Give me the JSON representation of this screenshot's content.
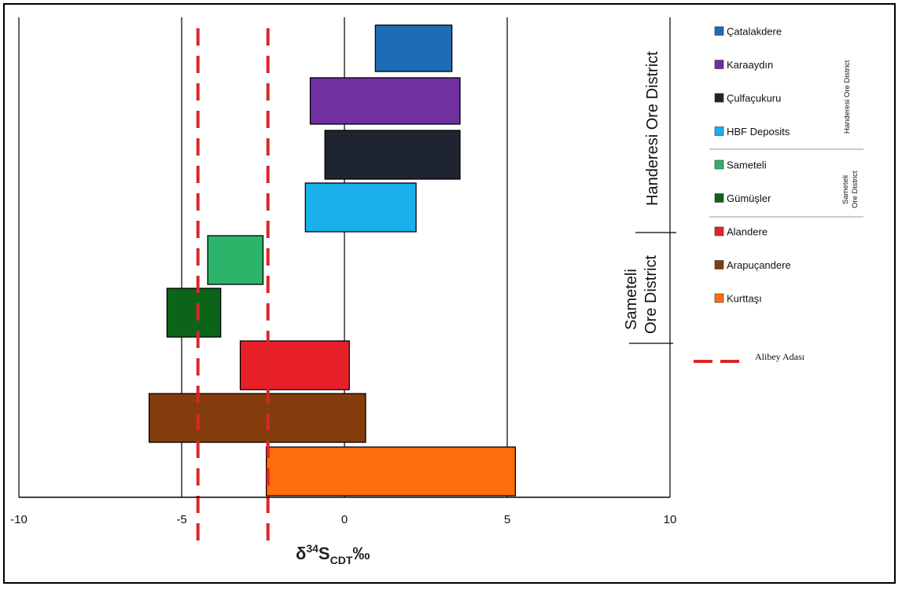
{
  "chart_data": {
    "type": "bar",
    "orientation": "horizontal",
    "title": "",
    "xlabel": "δ34S_CDT‰",
    "xlabel_parts": {
      "delta": "δ",
      "sup": "34",
      "s": "S",
      "sub": "CDT",
      "unit": "‰"
    },
    "xlim": [
      -10,
      10
    ],
    "xticks": [
      -10,
      -5,
      0,
      5,
      10
    ],
    "xtick_labels": [
      "-10",
      "-5",
      "0",
      "5",
      "10"
    ],
    "grid": "vertical",
    "bars": [
      {
        "name": "Çatalakdere",
        "min": 0.95,
        "max": 3.3,
        "color": "#1f6bb5"
      },
      {
        "name": "Karaaydın",
        "min": -1.05,
        "max": 3.55,
        "color": "#7030a0"
      },
      {
        "name": "Çulfaçukuru",
        "min": -0.6,
        "max": 3.55,
        "color": "#1e2530"
      },
      {
        "name": "HBF Deposits",
        "min": -1.2,
        "max": 2.2,
        "color": "#19b0ec"
      },
      {
        "name": "Sameteli",
        "min": -4.2,
        "max": -2.5,
        "color": "#2db46b"
      },
      {
        "name": "Gümüşler",
        "min": -5.45,
        "max": -3.8,
        "color": "#0c6418"
      },
      {
        "name": "Alandere",
        "min": -3.2,
        "max": 0.15,
        "color": "#e8202a"
      },
      {
        "name": "Arapuçandere",
        "min": -6.0,
        "max": 0.65,
        "color": "#843c0c"
      },
      {
        "name": "Kurttaşı",
        "min": -2.4,
        "max": 5.25,
        "color": "#ff6d0c"
      }
    ],
    "reference_lines": [
      {
        "name": "Alibey Adası",
        "values": [
          -4.5,
          -2.35
        ],
        "color": "#d9262a",
        "style": "dashed"
      }
    ],
    "legend_placement": "right"
  },
  "districts": {
    "handeresi_big": "Handeresi Ore District",
    "sameteli_big_line1": "Sameteli",
    "sameteli_big_line2": "Ore District",
    "handeresi_small": "Handeresi Ore District",
    "sameteli_small_line1": "Sameteli",
    "sameteli_small_line2": "Ore District"
  },
  "legend": {
    "items": [
      {
        "label": "Çatalakdere",
        "color": "#1f6bb5"
      },
      {
        "label": "Karaaydın",
        "color": "#7030a0"
      },
      {
        "label": "Çulfaçukuru",
        "color": "#1e2530"
      },
      {
        "label": "HBF Deposits",
        "color": "#19b0ec"
      },
      {
        "label": "Sameteli",
        "color": "#2db46b"
      },
      {
        "label": "Gümüşler",
        "color": "#0c6418"
      },
      {
        "label": "Alandere",
        "color": "#e8202a"
      },
      {
        "label": "Arapuçandere",
        "color": "#843c0c"
      },
      {
        "label": "Kurttaşı",
        "color": "#ff6d0c"
      }
    ],
    "dashed_label": "Alibey Adası"
  }
}
